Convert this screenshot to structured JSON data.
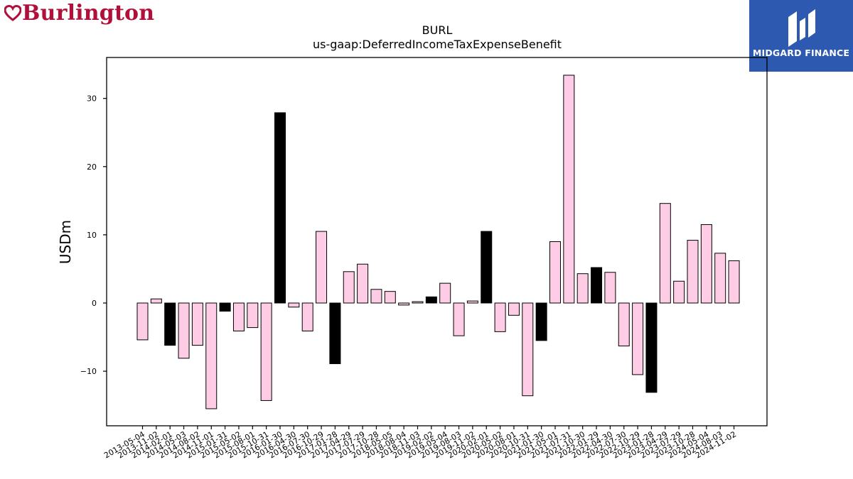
{
  "branding": {
    "company_logo_text": "Burlington",
    "publisher_name": "MIDGARD FINANCE",
    "company_logo_color": "#b0103a",
    "publisher_bg_color": "#2d59b0"
  },
  "chart_data": {
    "type": "bar",
    "title": "BURL",
    "subtitle": "us-gaap:DeferredIncomeTaxExpenseBenefit",
    "xlabel": "",
    "ylabel": "USDm",
    "ylim": [
      -18.0,
      36.0
    ],
    "yticks": [
      -10,
      0,
      10,
      20,
      30
    ],
    "grid": false,
    "legend": "none",
    "colors": {
      "default": "#ffcce6",
      "highlight": "#000000",
      "edge": "#000000"
    },
    "categories": [
      "2013-05-04",
      "2013-11-02",
      "2014-02-01",
      "2014-05-03",
      "2014-08-02",
      "2014-11-01",
      "2015-01-31",
      "2015-05-02",
      "2015-08-01",
      "2015-10-31",
      "2016-01-30",
      "2016-04-30",
      "2016-07-30",
      "2016-10-29",
      "2017-01-28",
      "2017-04-29",
      "2017-07-29",
      "2017-10-28",
      "2018-05-05",
      "2018-08-04",
      "2018-11-03",
      "2019-02-02",
      "2019-05-04",
      "2019-08-03",
      "2019-11-02",
      "2020-02-01",
      "2020-05-02",
      "2020-08-01",
      "2020-10-31",
      "2021-01-30",
      "2021-05-01",
      "2021-07-31",
      "2021-10-30",
      "2022-01-29",
      "2022-04-30",
      "2022-07-30",
      "2022-10-29",
      "2023-01-28",
      "2023-04-29",
      "2023-07-29",
      "2023-10-28",
      "2024-05-04",
      "2024-08-03",
      "2024-11-02"
    ],
    "values": [
      -5.4,
      0.6,
      -6.2,
      -8.1,
      -6.2,
      -15.5,
      -1.2,
      -4.1,
      -3.6,
      -14.3,
      27.9,
      -0.6,
      -4.1,
      10.5,
      -8.9,
      4.6,
      5.7,
      2.0,
      1.7,
      -0.3,
      0.2,
      0.9,
      2.9,
      -4.8,
      0.3,
      10.5,
      -4.2,
      -1.8,
      -13.6,
      -5.5,
      9.0,
      33.4,
      4.3,
      5.2,
      4.5,
      -6.3,
      -10.5,
      -13.1,
      14.6,
      3.2,
      9.2,
      11.5,
      7.3,
      6.2
    ],
    "highlighted": [
      false,
      false,
      true,
      false,
      false,
      false,
      true,
      false,
      false,
      false,
      true,
      false,
      false,
      false,
      true,
      false,
      false,
      false,
      false,
      false,
      false,
      true,
      false,
      false,
      false,
      true,
      false,
      false,
      false,
      true,
      false,
      false,
      false,
      true,
      false,
      false,
      false,
      true,
      false,
      false,
      false,
      false,
      false,
      false
    ]
  }
}
